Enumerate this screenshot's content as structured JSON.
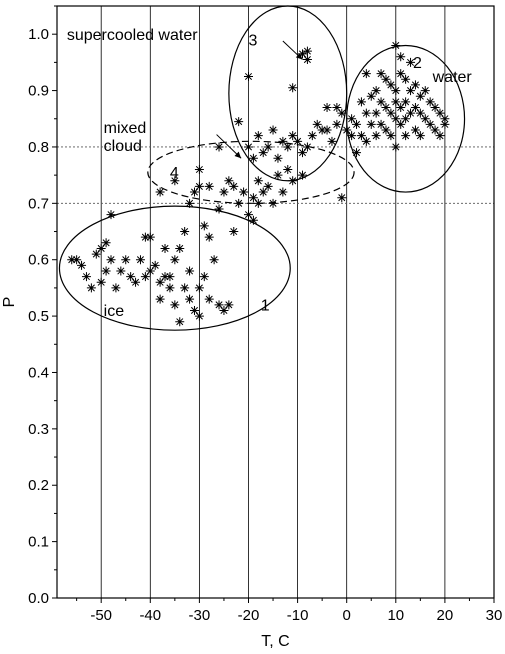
{
  "chart_data": {
    "type": "scatter",
    "xlabel": "T, C",
    "ylabel": "P",
    "xlim": [
      -59,
      30
    ],
    "ylim": [
      0.0,
      1.05
    ],
    "x_ticks": [
      -50,
      -40,
      -30,
      -20,
      -10,
      0,
      10,
      20,
      30
    ],
    "x_tick_labels": [
      "-50",
      "-40",
      "-30",
      "-20",
      "-10",
      "0",
      "10",
      "20",
      "30"
    ],
    "y_ticks": [
      0.0,
      0.1,
      0.2,
      0.3,
      0.4,
      0.5,
      0.6,
      0.7,
      0.8,
      0.9,
      1.0
    ],
    "y_tick_labels": [
      "0.0",
      "0.1",
      "0.2",
      "0.3",
      "0.4",
      "0.5",
      "0.6",
      "0.7",
      "0.8",
      "0.9",
      "1.0"
    ],
    "grid": "vertical lines at each x tick",
    "threshold_lines": [
      0.7,
      0.8
    ],
    "marker": "asterisk",
    "regions": [
      {
        "label": "1",
        "name": "ice",
        "center": [
          -35,
          0.585
        ],
        "radius": [
          23.5,
          0.11
        ],
        "style": "solid"
      },
      {
        "label": "2",
        "name": "water",
        "center": [
          12,
          0.85
        ],
        "radius": [
          12,
          0.13
        ],
        "style": "solid"
      },
      {
        "label": "3",
        "name": "supercooled water",
        "center": [
          -12,
          0.895
        ],
        "radius": [
          12,
          0.155
        ],
        "style": "solid"
      },
      {
        "label": "4",
        "name": "mixed cloud",
        "center": [
          -19.5,
          0.755
        ],
        "radius": [
          21,
          0.055
        ],
        "style": "dashed"
      }
    ],
    "annotations": [
      {
        "text": "supercooled water",
        "position": [
          -57,
          0.99
        ]
      },
      {
        "text": "water",
        "position": [
          17.5,
          0.915
        ]
      },
      {
        "text": "mixed cloud",
        "lines": [
          "mixed",
          "cloud"
        ],
        "position": [
          -49.5,
          0.825
        ]
      },
      {
        "text": "ice",
        "position": [
          -49.5,
          0.5
        ]
      },
      {
        "text": "1",
        "position": [
          -17.5,
          0.51
        ]
      },
      {
        "text": "2",
        "position": [
          13.5,
          0.94
        ]
      },
      {
        "text": "3",
        "position": [
          -20,
          0.98
        ]
      },
      {
        "text": "4",
        "position": [
          -36,
          0.745
        ]
      }
    ],
    "arrows": [
      {
        "from": [
          -13,
          0.988
        ],
        "to": [
          -9,
          0.955
        ]
      },
      {
        "from": [
          -26.5,
          0.822
        ],
        "to": [
          -21.5,
          0.78
        ]
      }
    ],
    "points": [
      [
        -56,
        0.6
      ],
      [
        -55,
        0.6
      ],
      [
        -54,
        0.59
      ],
      [
        -53,
        0.57
      ],
      [
        -52,
        0.55
      ],
      [
        -51,
        0.61
      ],
      [
        -50,
        0.62
      ],
      [
        -50,
        0.56
      ],
      [
        -49,
        0.63
      ],
      [
        -49,
        0.58
      ],
      [
        -48,
        0.6
      ],
      [
        -47,
        0.55
      ],
      [
        -46,
        0.58
      ],
      [
        -45,
        0.6
      ],
      [
        -44,
        0.57
      ],
      [
        -43,
        0.56
      ],
      [
        -42,
        0.6
      ],
      [
        -41,
        0.64
      ],
      [
        -41,
        0.57
      ],
      [
        -40,
        0.64
      ],
      [
        -40,
        0.58
      ],
      [
        -39,
        0.59
      ],
      [
        -38,
        0.56
      ],
      [
        -38,
        0.53
      ],
      [
        -37,
        0.57
      ],
      [
        -37,
        0.62
      ],
      [
        -36,
        0.57
      ],
      [
        -36,
        0.55
      ],
      [
        -35,
        0.52
      ],
      [
        -35,
        0.6
      ],
      [
        -34,
        0.62
      ],
      [
        -34,
        0.49
      ],
      [
        -33,
        0.65
      ],
      [
        -33,
        0.55
      ],
      [
        -32,
        0.58
      ],
      [
        -32,
        0.53
      ],
      [
        -31,
        0.51
      ],
      [
        -30,
        0.5
      ],
      [
        -30,
        0.55
      ],
      [
        -29,
        0.57
      ],
      [
        -29,
        0.66
      ],
      [
        -28,
        0.64
      ],
      [
        -28,
        0.53
      ],
      [
        -27,
        0.6
      ],
      [
        -26,
        0.52
      ],
      [
        -25,
        0.51
      ],
      [
        -24,
        0.52
      ],
      [
        -23,
        0.65
      ],
      [
        -48,
        0.68
      ],
      [
        -38,
        0.72
      ],
      [
        -35,
        0.74
      ],
      [
        -32,
        0.7
      ],
      [
        -31,
        0.72
      ],
      [
        -30,
        0.73
      ],
      [
        -30,
        0.76
      ],
      [
        -28,
        0.73
      ],
      [
        -26,
        0.69
      ],
      [
        -25,
        0.72
      ],
      [
        -24,
        0.74
      ],
      [
        -23,
        0.73
      ],
      [
        -22,
        0.7
      ],
      [
        -21,
        0.72
      ],
      [
        -20,
        0.68
      ],
      [
        -19,
        0.71
      ],
      [
        -19,
        0.67
      ],
      [
        -18,
        0.74
      ],
      [
        -18,
        0.7
      ],
      [
        -17,
        0.72
      ],
      [
        -16,
        0.73
      ],
      [
        -15,
        0.7
      ],
      [
        -14,
        0.75
      ],
      [
        -13,
        0.72
      ],
      [
        -12,
        0.76
      ],
      [
        -11,
        0.74
      ],
      [
        -9,
        0.75
      ],
      [
        -1,
        0.71
      ],
      [
        -26,
        0.8
      ],
      [
        -22,
        0.845
      ],
      [
        -20,
        0.8
      ],
      [
        -19,
        0.78
      ],
      [
        -18,
        0.82
      ],
      [
        -17,
        0.79
      ],
      [
        -16,
        0.8
      ],
      [
        -15,
        0.83
      ],
      [
        -14,
        0.78
      ],
      [
        -13,
        0.81
      ],
      [
        -12,
        0.8
      ],
      [
        -11,
        0.82
      ],
      [
        -10,
        0.81
      ],
      [
        -9,
        0.79
      ],
      [
        -8,
        0.8
      ],
      [
        -7,
        0.82
      ],
      [
        -20,
        0.925
      ],
      [
        -11,
        0.905
      ],
      [
        -9,
        0.965
      ],
      [
        -8,
        0.97
      ],
      [
        -8,
        0.955
      ],
      [
        -6,
        0.84
      ],
      [
        -5,
        0.83
      ],
      [
        -4,
        0.87
      ],
      [
        -3,
        0.81
      ],
      [
        -2,
        0.84
      ],
      [
        -1,
        0.86
      ],
      [
        0,
        0.83
      ],
      [
        1,
        0.85
      ],
      [
        2,
        0.84
      ],
      [
        2,
        0.79
      ],
      [
        3,
        0.88
      ],
      [
        3,
        0.82
      ],
      [
        4,
        0.86
      ],
      [
        4,
        0.81
      ],
      [
        5,
        0.89
      ],
      [
        5,
        0.84
      ],
      [
        6,
        0.9
      ],
      [
        6,
        0.86
      ],
      [
        6,
        0.82
      ],
      [
        7,
        0.93
      ],
      [
        7,
        0.88
      ],
      [
        7,
        0.84
      ],
      [
        8,
        0.92
      ],
      [
        8,
        0.87
      ],
      [
        8,
        0.83
      ],
      [
        9,
        0.91
      ],
      [
        9,
        0.86
      ],
      [
        9,
        0.82
      ],
      [
        10,
        0.98
      ],
      [
        10,
        0.9
      ],
      [
        10,
        0.88
      ],
      [
        10,
        0.85
      ],
      [
        10,
        0.8
      ],
      [
        11,
        0.93
      ],
      [
        11,
        0.87
      ],
      [
        11,
        0.84
      ],
      [
        12,
        0.92
      ],
      [
        12,
        0.88
      ],
      [
        12,
        0.85
      ],
      [
        12,
        0.82
      ],
      [
        13,
        0.95
      ],
      [
        13,
        0.9
      ],
      [
        13,
        0.86
      ],
      [
        14,
        0.91
      ],
      [
        14,
        0.87
      ],
      [
        14,
        0.83
      ],
      [
        15,
        0.89
      ],
      [
        15,
        0.86
      ],
      [
        15,
        0.82
      ],
      [
        16,
        0.9
      ],
      [
        16,
        0.85
      ],
      [
        17,
        0.88
      ],
      [
        17,
        0.84
      ],
      [
        18,
        0.87
      ],
      [
        18,
        0.83
      ],
      [
        19,
        0.86
      ],
      [
        19,
        0.82
      ],
      [
        20,
        0.85
      ],
      [
        20,
        0.84
      ],
      [
        4,
        0.93
      ],
      [
        -4,
        0.83
      ],
      [
        -2,
        0.87
      ],
      [
        1,
        0.82
      ],
      [
        11,
        0.96
      ]
    ]
  }
}
